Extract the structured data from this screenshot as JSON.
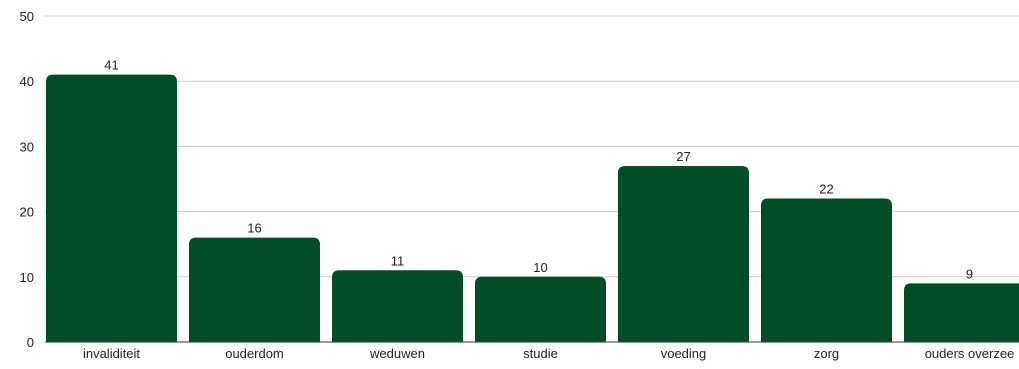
{
  "chart_data": {
    "type": "bar",
    "categories": [
      "invaliditeit",
      "ouderdom",
      "weduwen",
      "studie",
      "voeding",
      "zorg",
      "ouders overzee"
    ],
    "values": [
      41,
      16,
      11,
      10,
      27,
      22,
      9
    ],
    "data_labels": [
      "41",
      "16",
      "11",
      "10",
      "27",
      "22",
      "9"
    ],
    "yticks": [
      0,
      10,
      20,
      30,
      40,
      50
    ],
    "ylim": [
      0,
      50
    ],
    "grid": true,
    "legend": "none",
    "bar_color": "#004d26",
    "title": "",
    "xlabel": "",
    "ylabel": ""
  }
}
